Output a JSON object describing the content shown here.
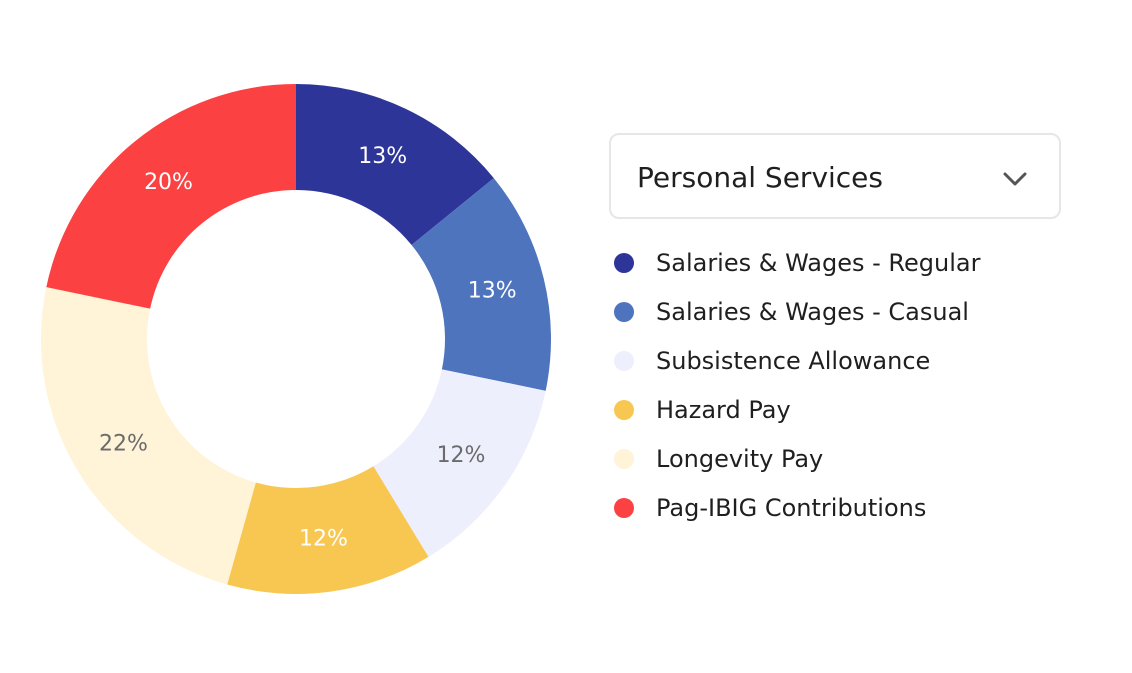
{
  "dropdown": {
    "selected": "Personal Services",
    "icon": "chevron-down-icon"
  },
  "chart_data": {
    "type": "pie",
    "donut": true,
    "legend_position": "right",
    "slices": [
      {
        "label": "Salaries & Wages - Regular",
        "value": 13,
        "display": "13%",
        "color": "#2E3599",
        "text_color": "#ffffff"
      },
      {
        "label": "Salaries & Wages - Casual",
        "value": 13,
        "display": "13%",
        "color": "#4E74BE",
        "text_color": "#ffffff"
      },
      {
        "label": "Subsistence Allowance",
        "value": 12,
        "display": "12%",
        "color": "#EEEFFD",
        "text_color": "#6b6b6b"
      },
      {
        "label": "Hazard Pay",
        "value": 12,
        "display": "12%",
        "color": "#F8C752",
        "text_color": "#ffffff"
      },
      {
        "label": "Longevity Pay",
        "value": 22,
        "display": "22%",
        "color": "#FFF3D8",
        "text_color": "#6b6b6b"
      },
      {
        "label": "Pag-IBIG Contributions",
        "value": 20,
        "display": "20%",
        "color": "#FC4143",
        "text_color": "#ffffff"
      }
    ]
  }
}
